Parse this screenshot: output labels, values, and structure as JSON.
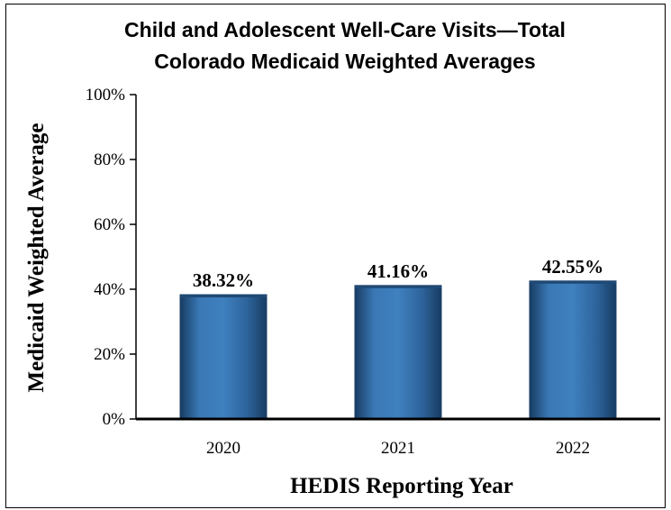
{
  "chart_data": {
    "type": "bar",
    "title": "Child and Adolescent Well-Care Visits—Total",
    "subtitle": "Colorado Medicaid Weighted Averages",
    "xlabel": "HEDIS Reporting Year",
    "ylabel": "Medicaid Weighted Average",
    "categories": [
      "2020",
      "2021",
      "2022"
    ],
    "values": [
      38.32,
      41.16,
      42.55
    ],
    "data_labels": [
      "38.32%",
      "41.16%",
      "42.55%"
    ],
    "ylim": [
      0,
      100
    ],
    "yticks": [
      0,
      20,
      40,
      60,
      80,
      100
    ],
    "ytick_labels": [
      "0%",
      "20%",
      "40%",
      "60%",
      "80%",
      "100%"
    ],
    "grid": false,
    "legend": "none",
    "bar_color": "#2f6aa3"
  }
}
